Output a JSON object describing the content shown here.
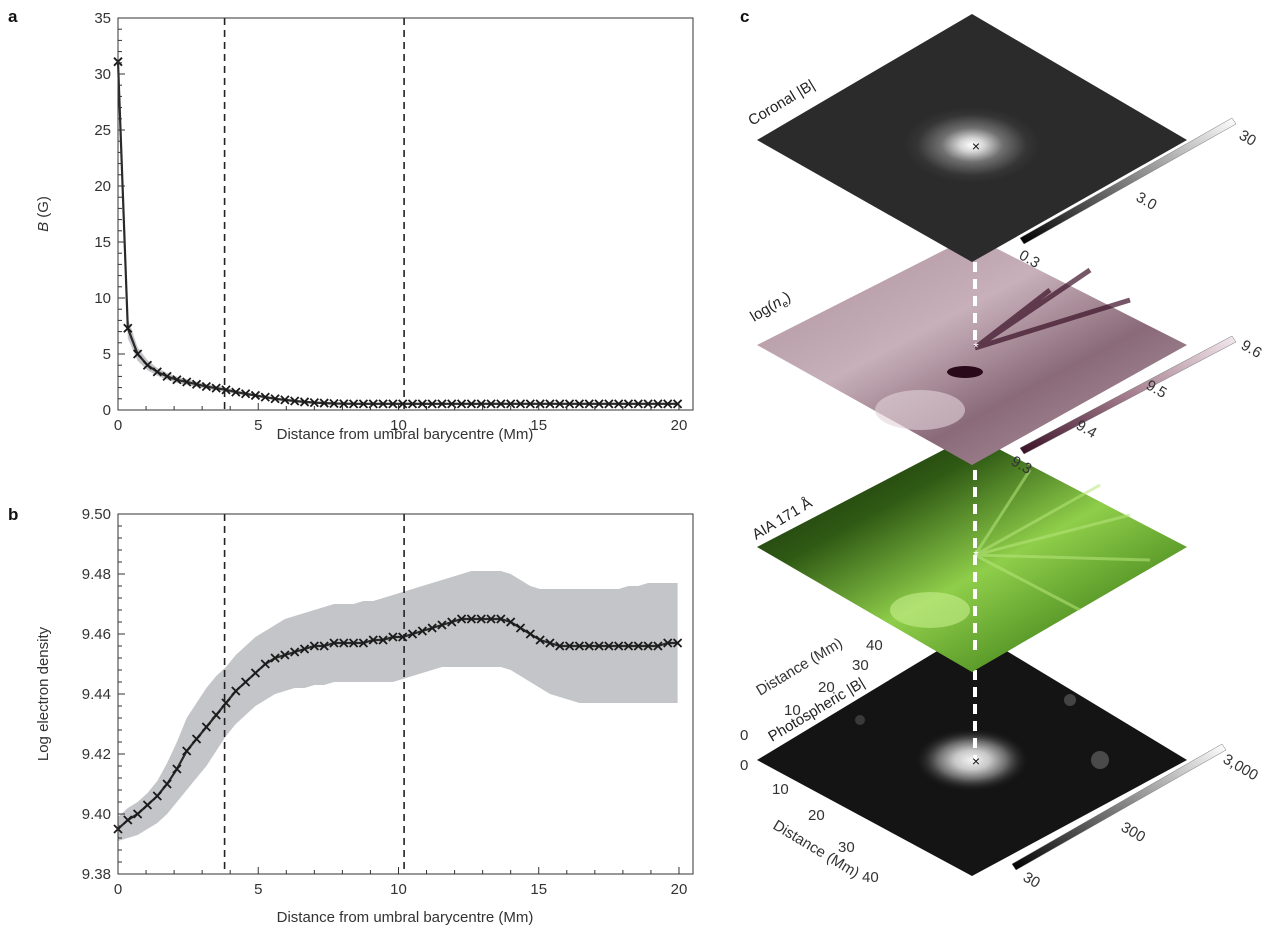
{
  "panels": {
    "a": {
      "letter": "a",
      "xlabel": "Distance from umbral barycentre (Mm)",
      "ylabel_symbol": "B",
      "ylabel_unit": " (G)"
    },
    "b": {
      "letter": "b",
      "xlabel": "Distance from umbral barycentre (Mm)",
      "ylabel": "Log electron density"
    },
    "c": {
      "letter": "c",
      "layers": [
        {
          "label": "Coronal |B|",
          "colorbar_ticks": [
            "0.3",
            "3.0",
            "30"
          ]
        },
        {
          "label": "log(n_e)",
          "colorbar_ticks": [
            "9.3",
            "9.4",
            "9.5",
            "9.6"
          ]
        },
        {
          "label": "AIA 171 Å",
          "colorbar_ticks": []
        },
        {
          "label": "Photospheric |B|",
          "colorbar_ticks": [
            "30",
            "300",
            "3,000"
          ]
        }
      ],
      "distance_axis_label": "Distance (Mm)",
      "distance_ticks": [
        "0",
        "10",
        "20",
        "30",
        "40"
      ],
      "colors": {
        "coronal": "#2b2b2b",
        "density": "#9a7d88",
        "aia": "#5d9e2c",
        "photospheric": "#141414"
      }
    }
  },
  "chart_data": [
    {
      "type": "line",
      "panel": "a",
      "xlabel": "Distance from umbral barycentre (Mm)",
      "ylabel": "B (G)",
      "xlim": [
        0,
        20.5
      ],
      "ylim": [
        0,
        35
      ],
      "xticks": [
        0,
        5,
        10,
        15,
        20
      ],
      "yticks": [
        0,
        5,
        10,
        15,
        20,
        25,
        30,
        35
      ],
      "vlines": [
        3.8,
        10.2
      ],
      "series": [
        {
          "x": [
            0,
            0.35,
            0.7,
            1.05,
            1.4,
            1.75,
            2.1,
            2.45,
            2.8,
            3.15,
            3.5,
            3.85,
            4.2,
            4.55,
            4.9,
            5.25,
            5.6,
            5.95,
            6.3,
            6.65,
            7.0,
            7.35,
            7.7,
            8.05,
            8.4,
            8.75,
            9.1,
            9.45,
            9.8,
            10.15,
            10.5,
            10.85,
            11.2,
            11.55,
            11.9,
            12.25,
            12.6,
            12.95,
            13.3,
            13.65,
            14.0,
            14.35,
            14.7,
            15.05,
            15.4,
            15.75,
            16.1,
            16.45,
            16.8,
            17.15,
            17.5,
            17.85,
            18.2,
            18.55,
            18.9,
            19.25,
            19.6,
            19.95
          ],
          "y": [
            31.1,
            7.3,
            5.0,
            4.0,
            3.4,
            3.0,
            2.7,
            2.5,
            2.3,
            2.1,
            1.95,
            1.8,
            1.6,
            1.45,
            1.3,
            1.15,
            1.0,
            0.9,
            0.8,
            0.72,
            0.66,
            0.62,
            0.58,
            0.56,
            0.55,
            0.55,
            0.55,
            0.55,
            0.55,
            0.55,
            0.55,
            0.55,
            0.55,
            0.55,
            0.55,
            0.55,
            0.55,
            0.55,
            0.55,
            0.55,
            0.55,
            0.55,
            0.55,
            0.55,
            0.55,
            0.55,
            0.55,
            0.55,
            0.55,
            0.55,
            0.55,
            0.55,
            0.55,
            0.55,
            0.55,
            0.55,
            0.55,
            0.55
          ],
          "band_half_width": [
            0.5,
            0.9,
            0.6,
            0.45,
            0.35,
            0.3,
            0.28,
            0.26,
            0.24,
            0.22,
            0.2,
            0.18,
            0.16,
            0.15,
            0.14,
            0.13,
            0.12,
            0.11,
            0.1,
            0.1,
            0.1,
            0.1,
            0.1,
            0.1,
            0.1,
            0.1,
            0.1,
            0.1,
            0.1,
            0.1,
            0.1,
            0.1,
            0.1,
            0.1,
            0.1,
            0.1,
            0.1,
            0.1,
            0.1,
            0.1,
            0.1,
            0.1,
            0.1,
            0.1,
            0.1,
            0.1,
            0.1,
            0.1,
            0.1,
            0.1,
            0.1,
            0.1,
            0.1,
            0.1,
            0.1,
            0.1,
            0.1,
            0.1
          ]
        }
      ]
    },
    {
      "type": "line",
      "panel": "b",
      "xlabel": "Distance from umbral barycentre (Mm)",
      "ylabel": "Log electron density",
      "xlim": [
        0,
        20.5
      ],
      "ylim": [
        9.38,
        9.5
      ],
      "xticks": [
        0,
        5,
        10,
        15,
        20
      ],
      "yticks": [
        9.38,
        9.4,
        9.42,
        9.44,
        9.46,
        9.48,
        9.5
      ],
      "vlines": [
        3.8,
        10.2
      ],
      "series": [
        {
          "x": [
            0,
            0.35,
            0.7,
            1.05,
            1.4,
            1.75,
            2.1,
            2.45,
            2.8,
            3.15,
            3.5,
            3.85,
            4.2,
            4.55,
            4.9,
            5.25,
            5.6,
            5.95,
            6.3,
            6.65,
            7.0,
            7.35,
            7.7,
            8.05,
            8.4,
            8.75,
            9.1,
            9.45,
            9.8,
            10.15,
            10.5,
            10.85,
            11.2,
            11.55,
            11.9,
            12.25,
            12.6,
            12.95,
            13.3,
            13.65,
            14.0,
            14.35,
            14.7,
            15.05,
            15.4,
            15.75,
            16.1,
            16.45,
            16.8,
            17.15,
            17.5,
            17.85,
            18.2,
            18.55,
            18.9,
            19.25,
            19.6,
            19.95
          ],
          "y": [
            9.395,
            9.398,
            9.4,
            9.403,
            9.406,
            9.41,
            9.415,
            9.421,
            9.425,
            9.429,
            9.433,
            9.437,
            9.441,
            9.444,
            9.447,
            9.45,
            9.452,
            9.453,
            9.454,
            9.455,
            9.456,
            9.456,
            9.457,
            9.457,
            9.457,
            9.457,
            9.458,
            9.458,
            9.459,
            9.459,
            9.46,
            9.461,
            9.462,
            9.463,
            9.464,
            9.465,
            9.465,
            9.465,
            9.465,
            9.465,
            9.464,
            9.462,
            9.46,
            9.458,
            9.457,
            9.456,
            9.456,
            9.456,
            9.456,
            9.456,
            9.456,
            9.456,
            9.456,
            9.456,
            9.456,
            9.456,
            9.457,
            9.457
          ],
          "band_lower": [
            9.391,
            9.392,
            9.393,
            9.395,
            9.397,
            9.4,
            9.404,
            9.408,
            9.412,
            9.416,
            9.421,
            9.426,
            9.43,
            9.433,
            9.436,
            9.438,
            9.44,
            9.441,
            9.442,
            9.442,
            9.443,
            9.443,
            9.444,
            9.444,
            9.444,
            9.444,
            9.444,
            9.444,
            9.444,
            9.445,
            9.446,
            9.447,
            9.448,
            9.449,
            9.449,
            9.449,
            9.449,
            9.449,
            9.449,
            9.449,
            9.448,
            9.446,
            9.444,
            9.442,
            9.44,
            9.439,
            9.438,
            9.437,
            9.437,
            9.437,
            9.437,
            9.437,
            9.437,
            9.437,
            9.437,
            9.437,
            9.437,
            9.437
          ],
          "band_upper": [
            9.399,
            9.402,
            9.404,
            9.407,
            9.411,
            9.417,
            9.424,
            9.432,
            9.437,
            9.442,
            9.446,
            9.449,
            9.453,
            9.456,
            9.459,
            9.461,
            9.463,
            9.465,
            9.466,
            9.467,
            9.468,
            9.469,
            9.47,
            9.47,
            9.47,
            9.471,
            9.471,
            9.472,
            9.473,
            9.474,
            9.475,
            9.476,
            9.477,
            9.478,
            9.479,
            9.48,
            9.481,
            9.481,
            9.481,
            9.481,
            9.48,
            9.478,
            9.476,
            9.475,
            9.475,
            9.475,
            9.475,
            9.475,
            9.475,
            9.475,
            9.475,
            9.475,
            9.476,
            9.476,
            9.477,
            9.477,
            9.477,
            9.477
          ]
        }
      ]
    }
  ]
}
